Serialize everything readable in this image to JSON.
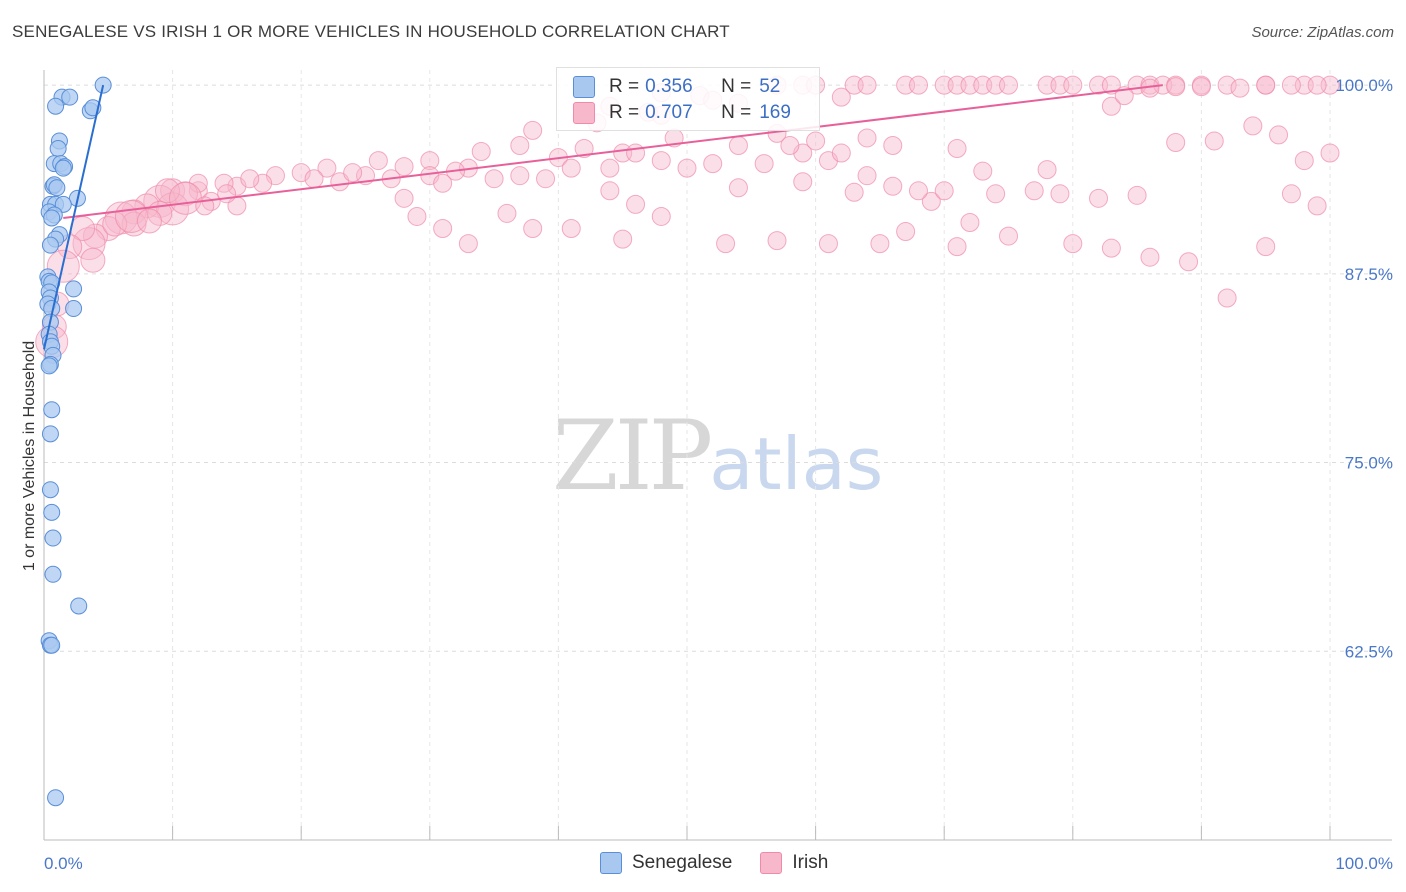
{
  "title": "SENEGALESE VS IRISH 1 OR MORE VEHICLES IN HOUSEHOLD CORRELATION CHART",
  "source": "Source: ZipAtlas.com",
  "watermark": {
    "zip": "ZIP",
    "atlas": "atlas"
  },
  "legend": {
    "series1": {
      "r_label": "R =",
      "r_value": "0.356",
      "n_label": "N =",
      "n_value": "52"
    },
    "series2": {
      "r_label": "R =",
      "r_value": "0.707",
      "n_label": "N =",
      "n_value": "169"
    }
  },
  "bottom_legend": {
    "series1": "Senegalese",
    "series2": "Irish"
  },
  "colors": {
    "senegalese_fill": "#a9c8f0",
    "senegalese_stroke": "#5a8fd8",
    "senegalese_line": "#2a6fd0",
    "irish_fill": "#f7b8cb",
    "irish_stroke": "#f08aaa",
    "irish_line": "#e8609a"
  },
  "chart_data": {
    "type": "scatter",
    "title": "SENEGALESE VS IRISH 1 OR MORE VEHICLES IN HOUSEHOLD CORRELATION CHART",
    "xlabel": "",
    "ylabel": "1 or more Vehicles in Household",
    "xlim": [
      0,
      100
    ],
    "ylim": [
      50,
      101
    ],
    "x_tick_labels": [
      "0.0%",
      "100.0%"
    ],
    "y_ticks": [
      62.5,
      75.0,
      87.5,
      100.0
    ],
    "y_tick_labels": [
      "62.5%",
      "75.0%",
      "87.5%",
      "100.0%"
    ],
    "series": [
      {
        "name": "Senegalese",
        "trend": {
          "x0": 0.0,
          "y0": 82.5,
          "x1": 4.6,
          "y1": 100.0
        },
        "points": [
          [
            4.6,
            100.0
          ],
          [
            1.4,
            99.2
          ],
          [
            2.0,
            99.2
          ],
          [
            0.9,
            98.6
          ],
          [
            3.6,
            98.3
          ],
          [
            3.8,
            98.5
          ],
          [
            1.2,
            96.3
          ],
          [
            1.1,
            95.8
          ],
          [
            0.8,
            94.8
          ],
          [
            1.3,
            94.8
          ],
          [
            1.6,
            94.6
          ],
          [
            1.5,
            94.5
          ],
          [
            0.7,
            93.3
          ],
          [
            0.8,
            93.4
          ],
          [
            2.6,
            92.5
          ],
          [
            0.5,
            92.1
          ],
          [
            0.9,
            92.1
          ],
          [
            1.5,
            92.1
          ],
          [
            0.4,
            91.6
          ],
          [
            0.8,
            91.4
          ],
          [
            0.6,
            91.2
          ],
          [
            1.2,
            90.1
          ],
          [
            0.9,
            89.8
          ],
          [
            0.5,
            89.4
          ],
          [
            0.3,
            87.3
          ],
          [
            0.4,
            87.0
          ],
          [
            0.6,
            86.9
          ],
          [
            2.3,
            86.5
          ],
          [
            0.4,
            86.3
          ],
          [
            0.5,
            85.9
          ],
          [
            0.3,
            85.5
          ],
          [
            0.6,
            85.2
          ],
          [
            2.3,
            85.2
          ],
          [
            0.5,
            84.3
          ],
          [
            0.4,
            83.5
          ],
          [
            0.5,
            83.0
          ],
          [
            0.6,
            82.7
          ],
          [
            0.7,
            82.1
          ],
          [
            0.5,
            81.5
          ],
          [
            0.4,
            81.4
          ],
          [
            0.6,
            78.5
          ],
          [
            0.5,
            76.9
          ],
          [
            0.5,
            73.2
          ],
          [
            0.6,
            71.7
          ],
          [
            0.7,
            70.0
          ],
          [
            0.7,
            67.6
          ],
          [
            2.7,
            65.5
          ],
          [
            0.4,
            63.2
          ],
          [
            0.5,
            62.9
          ],
          [
            0.6,
            62.9
          ],
          [
            0.9,
            52.8
          ],
          [
            1.0,
            93.2
          ]
        ]
      },
      {
        "name": "Irish",
        "trend": {
          "x0": 1.5,
          "y0": 91.2,
          "x1": 87.0,
          "y1": 100.0
        },
        "points": [
          [
            57,
            100
          ],
          [
            59,
            100
          ],
          [
            60,
            100
          ],
          [
            63,
            100
          ],
          [
            64,
            100
          ],
          [
            67,
            100
          ],
          [
            68,
            100
          ],
          [
            70,
            100
          ],
          [
            71,
            100
          ],
          [
            72,
            100
          ],
          [
            73,
            100
          ],
          [
            74,
            100
          ],
          [
            75,
            100
          ],
          [
            78,
            100
          ],
          [
            79,
            100
          ],
          [
            80,
            100
          ],
          [
            82,
            100
          ],
          [
            83,
            100
          ],
          [
            85,
            100
          ],
          [
            86,
            100
          ],
          [
            87,
            100
          ],
          [
            88,
            100
          ],
          [
            90,
            100
          ],
          [
            92,
            100
          ],
          [
            95,
            100
          ],
          [
            98,
            100
          ],
          [
            100,
            100
          ],
          [
            48,
            99.5
          ],
          [
            51,
            99.3
          ],
          [
            62,
            99.2
          ],
          [
            52,
            99.0
          ],
          [
            54,
            98.8
          ],
          [
            44,
            98.6
          ],
          [
            47,
            98.2
          ],
          [
            48,
            98.0
          ],
          [
            43,
            97.5
          ],
          [
            38,
            97.0
          ],
          [
            49,
            96.5
          ],
          [
            57,
            96.8
          ],
          [
            64,
            96.5
          ],
          [
            54,
            96.0
          ],
          [
            59,
            95.5
          ],
          [
            61,
            95.0
          ],
          [
            66,
            96.0
          ],
          [
            71,
            95.8
          ],
          [
            73,
            94.3
          ],
          [
            37,
            96.0
          ],
          [
            40,
            95.2
          ],
          [
            42,
            95.8
          ],
          [
            45,
            95.5
          ],
          [
            30,
            95.0
          ],
          [
            34,
            95.6
          ],
          [
            26,
            95.0
          ],
          [
            28,
            94.6
          ],
          [
            33,
            94.5
          ],
          [
            30,
            94.0
          ],
          [
            32,
            94.3
          ],
          [
            22,
            94.5
          ],
          [
            25,
            94.0
          ],
          [
            27,
            93.8
          ],
          [
            20,
            94.2
          ],
          [
            21,
            93.8
          ],
          [
            18,
            94.0
          ],
          [
            23,
            93.6
          ],
          [
            24,
            94.2
          ],
          [
            17,
            93.5
          ],
          [
            15,
            93.3
          ],
          [
            14,
            93.5
          ],
          [
            12,
            93.0
          ],
          [
            12,
            93.5
          ],
          [
            10,
            93.0
          ],
          [
            11,
            92.8
          ],
          [
            9,
            92.3
          ],
          [
            8,
            92.0
          ],
          [
            7,
            91.6
          ],
          [
            6,
            91.2
          ],
          [
            5,
            90.5
          ],
          [
            4,
            90.0
          ],
          [
            3.5,
            89.5
          ],
          [
            3,
            90.5
          ],
          [
            2,
            89.3
          ],
          [
            1.5,
            88.0
          ],
          [
            1,
            85.5
          ],
          [
            0.8,
            84.0
          ],
          [
            0.6,
            83.0
          ],
          [
            15,
            92.0
          ],
          [
            13,
            92.3
          ],
          [
            10,
            91.8
          ],
          [
            9,
            91.5
          ],
          [
            7,
            90.8
          ],
          [
            28,
            92.5
          ],
          [
            31,
            93.5
          ],
          [
            35,
            93.8
          ],
          [
            37,
            94.0
          ],
          [
            39,
            93.8
          ],
          [
            41,
            94.5
          ],
          [
            44,
            94.5
          ],
          [
            46,
            95.5
          ],
          [
            48,
            95.0
          ],
          [
            50,
            94.5
          ],
          [
            52,
            94.8
          ],
          [
            56,
            94.8
          ],
          [
            58,
            96.0
          ],
          [
            60,
            96.3
          ],
          [
            62,
            95.5
          ],
          [
            64,
            94.0
          ],
          [
            66,
            93.3
          ],
          [
            69,
            92.3
          ],
          [
            72,
            90.9
          ],
          [
            74,
            92.8
          ],
          [
            77,
            93.0
          ],
          [
            79,
            92.8
          ],
          [
            82,
            92.5
          ],
          [
            85,
            92.7
          ],
          [
            88,
            96.2
          ],
          [
            91,
            96.3
          ],
          [
            94,
            97.3
          ],
          [
            96,
            96.7
          ],
          [
            98,
            95.0
          ],
          [
            100,
            95.5
          ],
          [
            44,
            93.0
          ],
          [
            46,
            92.1
          ],
          [
            48,
            91.3
          ],
          [
            53,
            89.5
          ],
          [
            57,
            89.7
          ],
          [
            61,
            89.5
          ],
          [
            65,
            89.5
          ],
          [
            68,
            93.0
          ],
          [
            70,
            93.0
          ],
          [
            75,
            90.0
          ],
          [
            80,
            89.5
          ],
          [
            83,
            89.2
          ],
          [
            86,
            88.6
          ],
          [
            89,
            88.3
          ],
          [
            92,
            85.9
          ],
          [
            95,
            89.3
          ],
          [
            97,
            92.8
          ],
          [
            99,
            92.0
          ],
          [
            36,
            91.5
          ],
          [
            38,
            90.5
          ],
          [
            29,
            91.3
          ],
          [
            31,
            90.5
          ],
          [
            33,
            89.5
          ],
          [
            41,
            90.5
          ],
          [
            45,
            89.8
          ],
          [
            54,
            93.2
          ],
          [
            59,
            93.6
          ],
          [
            63,
            92.9
          ],
          [
            67,
            90.3
          ],
          [
            71,
            89.3
          ],
          [
            78,
            94.4
          ],
          [
            83,
            98.6
          ],
          [
            84,
            99.3
          ],
          [
            86,
            99.8
          ],
          [
            88,
            99.9
          ],
          [
            90,
            99.9
          ],
          [
            93,
            99.8
          ],
          [
            95,
            100
          ],
          [
            97,
            100
          ],
          [
            99,
            100
          ],
          [
            3.8,
            88.4
          ],
          [
            5.5,
            90.8
          ],
          [
            6.8,
            91.3
          ],
          [
            8.2,
            91.0
          ],
          [
            9.6,
            93.0
          ],
          [
            11,
            92.5
          ],
          [
            12.5,
            92.0
          ],
          [
            14.2,
            92.8
          ],
          [
            16,
            93.8
          ]
        ]
      }
    ]
  }
}
